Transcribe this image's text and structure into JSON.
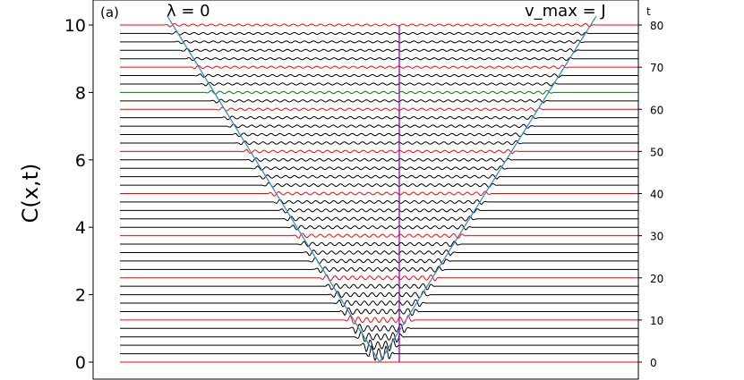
{
  "chart_data": {
    "type": "line",
    "panel_label": "(a)",
    "ylabel": "C(x,t)",
    "xlabel": "",
    "ylim": [
      -0.6,
      10.5
    ],
    "y_ticks": [
      0,
      2,
      4,
      6,
      8,
      10
    ],
    "t_axis_label": "t",
    "t_ticks": [
      0,
      10,
      20,
      30,
      40,
      50,
      60,
      70,
      80
    ],
    "annotation_left": "λ = 0",
    "annotation_right": "v_max = J",
    "series_count": 41,
    "time_step": 2,
    "offset_per_curve": 0.25,
    "highlight_every": 5,
    "highlighted_index": 32,
    "colors": {
      "normal": "#000000",
      "highlight": "#ff0000",
      "special": "#008000",
      "lightcone": "#3a8fc8",
      "center": "#9400d3"
    }
  }
}
